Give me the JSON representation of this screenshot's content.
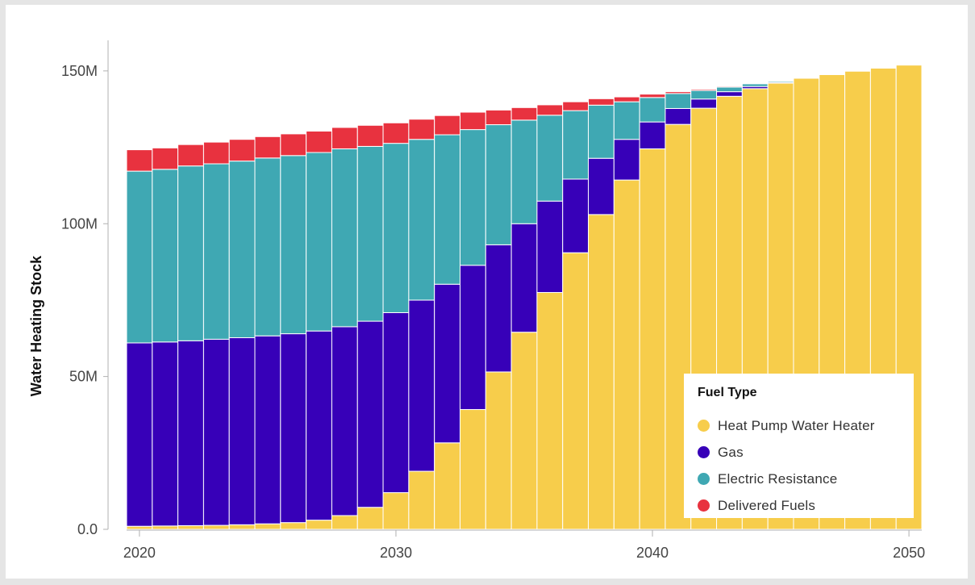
{
  "chart_data": {
    "type": "bar",
    "stacked": true,
    "title": "",
    "xlabel": "",
    "ylabel": "Water Heating Stock",
    "x": [
      2020,
      2021,
      2022,
      2023,
      2024,
      2025,
      2026,
      2027,
      2028,
      2029,
      2030,
      2031,
      2032,
      2033,
      2034,
      2035,
      2036,
      2037,
      2038,
      2039,
      2040,
      2041,
      2042,
      2043,
      2044,
      2045,
      2046,
      2047,
      2048,
      2049,
      2050
    ],
    "xlim": [
      2019.5,
      2050.5
    ],
    "ylim": [
      0,
      160
    ],
    "y_unit": "millions",
    "x_ticks": [
      {
        "value": 2020,
        "label": "2020"
      },
      {
        "value": 2030,
        "label": "2030"
      },
      {
        "value": 2040,
        "label": "2040"
      },
      {
        "value": 2050,
        "label": "2050"
      }
    ],
    "y_ticks": [
      {
        "value": 0,
        "label": "0.0"
      },
      {
        "value": 50,
        "label": "50M"
      },
      {
        "value": 100,
        "label": "100M"
      },
      {
        "value": 150,
        "label": "150M"
      }
    ],
    "grid": false,
    "legend": {
      "title": "Fuel Type",
      "placement": "bottom-right"
    },
    "series": [
      {
        "name": "Heat Pump Water Heater",
        "color": "#f7cd4b",
        "values": [
          1.0,
          1.1,
          1.2,
          1.3,
          1.5,
          1.8,
          2.2,
          3.0,
          4.5,
          7.2,
          12.0,
          19.0,
          28.3,
          39.2,
          51.5,
          64.5,
          77.5,
          90.5,
          103.0,
          114.3,
          124.5,
          132.5,
          137.8,
          141.7,
          144.2,
          146.0,
          147.6,
          148.8,
          149.9,
          150.9,
          151.9
        ]
      },
      {
        "name": "Gas",
        "color": "#3700b8",
        "values": [
          60.0,
          60.2,
          60.5,
          60.9,
          61.2,
          61.5,
          61.8,
          61.9,
          61.8,
          60.9,
          58.9,
          56.0,
          51.9,
          47.2,
          41.6,
          35.5,
          29.9,
          24.1,
          18.4,
          13.3,
          8.8,
          5.2,
          3.0,
          1.5,
          0.7,
          0.3,
          0.2,
          0.0,
          0.0,
          0.0,
          0.0
        ]
      },
      {
        "name": "Electric Resistance",
        "color": "#3fa8b3",
        "values": [
          56.2,
          56.5,
          57.2,
          57.4,
          57.8,
          58.2,
          58.3,
          58.4,
          58.2,
          57.2,
          55.4,
          52.6,
          48.9,
          44.4,
          39.3,
          33.9,
          28.1,
          22.4,
          17.4,
          12.3,
          8.0,
          4.9,
          2.8,
          1.5,
          0.9,
          0.4,
          0.2,
          0.2,
          0.0,
          0.0,
          0.0
        ]
      },
      {
        "name": "Delivered Fuels",
        "color": "#e8323f",
        "values": [
          7.0,
          7.0,
          7.0,
          7.1,
          7.1,
          7.0,
          7.1,
          7.0,
          7.0,
          6.9,
          6.7,
          6.6,
          6.3,
          5.7,
          4.8,
          4.1,
          3.4,
          2.9,
          2.1,
          1.6,
          1.1,
          0.6,
          0.4,
          0.3,
          0.2,
          0.1,
          0.0,
          0.0,
          0.0,
          0.0,
          0.0
        ]
      }
    ]
  }
}
